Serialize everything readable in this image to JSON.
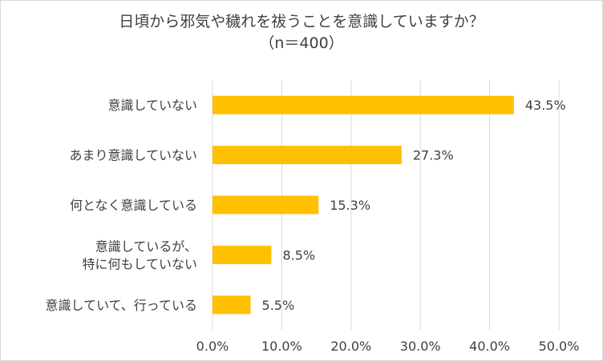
{
  "chart_data": {
    "type": "bar",
    "orientation": "horizontal",
    "title": "日頃から邪気や穢れを祓うことを意識していますか？",
    "subtitle": "（n＝400）",
    "categories": [
      "意識していない",
      "あまり意識していない",
      "何となく意識している",
      "意識しているが、\n特に何もしていない",
      "意識していて、行っている"
    ],
    "values": [
      43.5,
      27.3,
      15.3,
      8.5,
      5.5
    ],
    "data_labels": [
      "43.5%",
      "27.3%",
      "15.3%",
      "8.5%",
      "5.5%"
    ],
    "xlim": [
      0,
      50
    ],
    "xticks": [
      "0.0%",
      "10.0%",
      "20.0%",
      "30.0%",
      "40.0%",
      "50.0%"
    ],
    "gridlines": true,
    "bar_color": "#FFC000",
    "grid_color": "#d9d9d9",
    "text_color": "#404040"
  }
}
